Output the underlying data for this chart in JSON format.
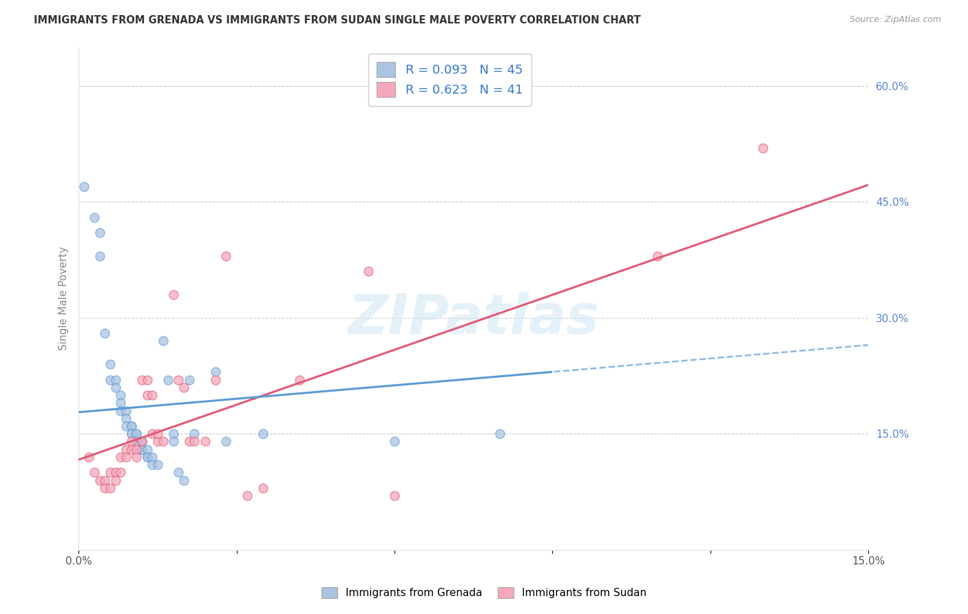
{
  "title": "IMMIGRANTS FROM GRENADA VS IMMIGRANTS FROM SUDAN SINGLE MALE POVERTY CORRELATION CHART",
  "source": "Source: ZipAtlas.com",
  "ylabel": "Single Male Poverty",
  "x_min": 0.0,
  "x_max": 0.15,
  "y_min": 0.0,
  "y_max": 0.65,
  "x_ticks": [
    0.0,
    0.03,
    0.06,
    0.09,
    0.12,
    0.15
  ],
  "x_tick_labels": [
    "0.0%",
    "",
    "",
    "",
    "",
    "15.0%"
  ],
  "y_ticks_right": [
    0.15,
    0.3,
    0.45,
    0.6
  ],
  "y_tick_labels_right": [
    "15.0%",
    "30.0%",
    "45.0%",
    "60.0%"
  ],
  "grenada_R": "0.093",
  "grenada_N": "45",
  "sudan_R": "0.623",
  "sudan_N": "41",
  "grenada_color": "#aac4e2",
  "sudan_color": "#f5a8bb",
  "grenada_line_color": "#5b9bd5",
  "sudan_line_color": "#e05a78",
  "watermark": "ZIPatlas",
  "grenada_scatter_x": [
    0.001,
    0.003,
    0.004,
    0.004,
    0.005,
    0.006,
    0.006,
    0.007,
    0.007,
    0.008,
    0.008,
    0.008,
    0.009,
    0.009,
    0.009,
    0.01,
    0.01,
    0.01,
    0.01,
    0.011,
    0.011,
    0.011,
    0.012,
    0.012,
    0.012,
    0.012,
    0.013,
    0.013,
    0.013,
    0.014,
    0.014,
    0.015,
    0.016,
    0.017,
    0.018,
    0.018,
    0.019,
    0.02,
    0.021,
    0.022,
    0.026,
    0.028,
    0.035,
    0.06,
    0.08
  ],
  "grenada_scatter_y": [
    0.47,
    0.43,
    0.41,
    0.38,
    0.28,
    0.24,
    0.22,
    0.22,
    0.21,
    0.2,
    0.19,
    0.18,
    0.18,
    0.17,
    0.16,
    0.16,
    0.16,
    0.15,
    0.15,
    0.15,
    0.15,
    0.14,
    0.14,
    0.14,
    0.13,
    0.13,
    0.13,
    0.12,
    0.12,
    0.12,
    0.11,
    0.11,
    0.27,
    0.22,
    0.15,
    0.14,
    0.1,
    0.09,
    0.22,
    0.15,
    0.23,
    0.14,
    0.15,
    0.14,
    0.15
  ],
  "sudan_scatter_x": [
    0.002,
    0.003,
    0.004,
    0.005,
    0.005,
    0.006,
    0.006,
    0.007,
    0.007,
    0.008,
    0.008,
    0.009,
    0.009,
    0.01,
    0.01,
    0.011,
    0.011,
    0.012,
    0.012,
    0.013,
    0.013,
    0.014,
    0.014,
    0.015,
    0.015,
    0.016,
    0.018,
    0.019,
    0.02,
    0.021,
    0.022,
    0.024,
    0.026,
    0.028,
    0.032,
    0.035,
    0.042,
    0.055,
    0.06,
    0.11,
    0.13
  ],
  "sudan_scatter_y": [
    0.12,
    0.1,
    0.09,
    0.09,
    0.08,
    0.1,
    0.08,
    0.1,
    0.09,
    0.1,
    0.12,
    0.13,
    0.12,
    0.14,
    0.13,
    0.13,
    0.12,
    0.14,
    0.22,
    0.2,
    0.22,
    0.2,
    0.15,
    0.14,
    0.15,
    0.14,
    0.33,
    0.22,
    0.21,
    0.14,
    0.14,
    0.14,
    0.22,
    0.38,
    0.07,
    0.08,
    0.22,
    0.36,
    0.07,
    0.38,
    0.52
  ]
}
